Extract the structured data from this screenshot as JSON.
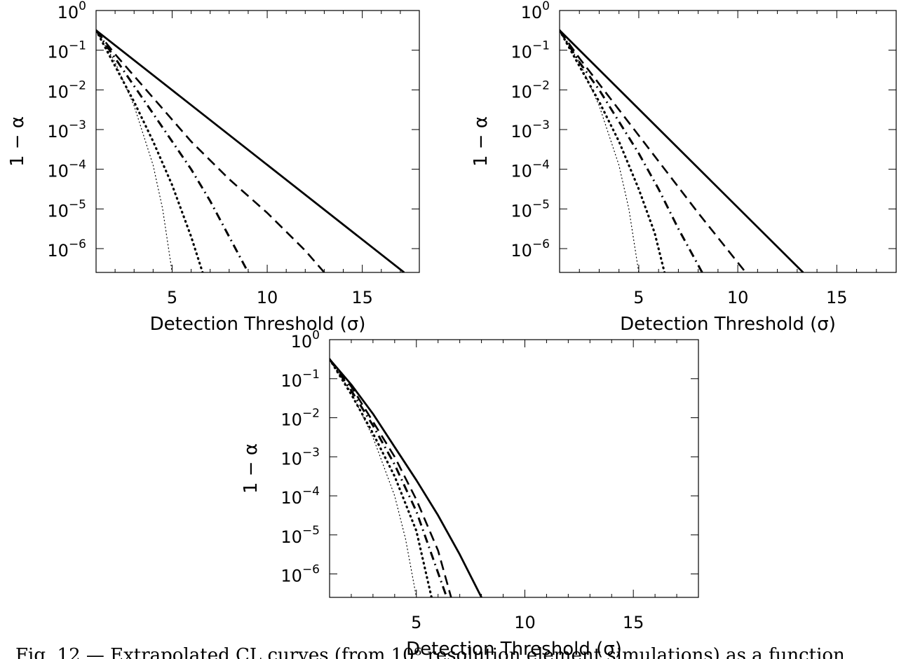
{
  "caption": "Fig. 12.— Extrapolated CL curves (from 10⁶ resolution element simulations) as a function",
  "chart_data": [
    {
      "type": "line",
      "title": "",
      "xlabel": "Detection Threshold (σ)",
      "ylabel": "1 − α",
      "xlim": [
        1,
        18
      ],
      "ylim_log10": [
        -6.6,
        0
      ],
      "yscale": "log",
      "xticks": [
        5,
        10,
        15
      ],
      "yticks": [
        {
          "exp": 0,
          "base": "10",
          "sup": "0"
        },
        {
          "exp": -1,
          "base": "10",
          "sup": "−1"
        },
        {
          "exp": -2,
          "base": "10",
          "sup": "−2"
        },
        {
          "exp": -3,
          "base": "10",
          "sup": "−3"
        },
        {
          "exp": -4,
          "base": "10",
          "sup": "−4"
        },
        {
          "exp": -5,
          "base": "10",
          "sup": "−5"
        },
        {
          "exp": -6,
          "base": "10",
          "sup": "−6"
        }
      ],
      "grid": false,
      "series": [
        {
          "style": "solid",
          "x": [
            1,
            17.2
          ],
          "log10_y": [
            -0.5,
            -6.6
          ]
        },
        {
          "style": "dashed",
          "x": [
            1,
            2,
            4,
            6,
            8,
            10,
            12,
            13.0
          ],
          "log10_y": [
            -0.5,
            -1.1,
            -2.2,
            -3.3,
            -4.25,
            -5.1,
            -6.05,
            -6.6
          ]
        },
        {
          "style": "dashdot",
          "x": [
            1,
            2,
            3,
            4,
            5,
            6,
            7,
            8,
            9.0
          ],
          "log10_y": [
            -0.5,
            -1.2,
            -1.9,
            -2.6,
            -3.3,
            -4.0,
            -4.8,
            -5.7,
            -6.6
          ]
        },
        {
          "style": "dotted",
          "x": [
            1,
            2,
            3,
            4,
            5,
            6,
            6.6
          ],
          "log10_y": [
            -0.5,
            -1.4,
            -2.3,
            -3.3,
            -4.4,
            -5.7,
            -6.6
          ]
        },
        {
          "style": "thin-dotted",
          "x": [
            1,
            2,
            3,
            4,
            4.5,
            5.0
          ],
          "log10_y": [
            -0.5,
            -1.3,
            -2.4,
            -3.9,
            -5.0,
            -6.6
          ]
        }
      ]
    },
    {
      "type": "line",
      "title": "",
      "xlabel": "Detection Threshold (σ)",
      "ylabel": "1 − α",
      "xlim": [
        1,
        18
      ],
      "ylim_log10": [
        -6.6,
        0
      ],
      "yscale": "log",
      "xticks": [
        5,
        10,
        15
      ],
      "yticks": [
        {
          "exp": 0,
          "base": "10",
          "sup": "0"
        },
        {
          "exp": -1,
          "base": "10",
          "sup": "−1"
        },
        {
          "exp": -2,
          "base": "10",
          "sup": "−2"
        },
        {
          "exp": -3,
          "base": "10",
          "sup": "−3"
        },
        {
          "exp": -4,
          "base": "10",
          "sup": "−4"
        },
        {
          "exp": -5,
          "base": "10",
          "sup": "−5"
        },
        {
          "exp": -6,
          "base": "10",
          "sup": "−6"
        }
      ],
      "grid": false,
      "series": [
        {
          "style": "solid",
          "x": [
            1,
            13.3
          ],
          "log10_y": [
            -0.5,
            -6.6
          ]
        },
        {
          "style": "dashed",
          "x": [
            1,
            2,
            4,
            6,
            8,
            10.4
          ],
          "log10_y": [
            -0.5,
            -1.2,
            -2.5,
            -3.8,
            -5.1,
            -6.6
          ]
        },
        {
          "style": "dashdot",
          "x": [
            1,
            2,
            3,
            4,
            5,
            6,
            7,
            8.2
          ],
          "log10_y": [
            -0.5,
            -1.3,
            -2.0,
            -2.8,
            -3.6,
            -4.5,
            -5.5,
            -6.6
          ]
        },
        {
          "style": "dotted",
          "x": [
            1,
            2,
            3,
            4,
            5,
            5.8,
            6.3
          ],
          "log10_y": [
            -0.5,
            -1.4,
            -2.3,
            -3.3,
            -4.5,
            -5.6,
            -6.6
          ]
        },
        {
          "style": "thin-dotted",
          "x": [
            1,
            2,
            3,
            4,
            4.5,
            5.0
          ],
          "log10_y": [
            -0.5,
            -1.3,
            -2.4,
            -3.9,
            -5.0,
            -6.6
          ]
        }
      ]
    },
    {
      "type": "line",
      "title": "",
      "xlabel": "Detection Threshold (σ)",
      "ylabel": "1 − α",
      "xlim": [
        1,
        18
      ],
      "ylim_log10": [
        -6.6,
        0
      ],
      "yscale": "log",
      "xticks": [
        5,
        10,
        15
      ],
      "yticks": [
        {
          "exp": 0,
          "base": "10",
          "sup": "0"
        },
        {
          "exp": -1,
          "base": "10",
          "sup": "−1"
        },
        {
          "exp": -2,
          "base": "10",
          "sup": "−2"
        },
        {
          "exp": -3,
          "base": "10",
          "sup": "−3"
        },
        {
          "exp": -4,
          "base": "10",
          "sup": "−4"
        },
        {
          "exp": -5,
          "base": "10",
          "sup": "−5"
        },
        {
          "exp": -6,
          "base": "10",
          "sup": "−6"
        }
      ],
      "grid": false,
      "series": [
        {
          "style": "solid",
          "x": [
            1,
            2,
            3,
            4,
            5,
            6,
            7,
            8.0
          ],
          "log10_y": [
            -0.5,
            -1.15,
            -1.9,
            -2.75,
            -3.6,
            -4.5,
            -5.5,
            -6.6
          ]
        },
        {
          "style": "dashed",
          "x": [
            1,
            2,
            3,
            4,
            5,
            6,
            6.6
          ],
          "log10_y": [
            -0.5,
            -1.2,
            -2.1,
            -3.0,
            -4.1,
            -5.4,
            -6.6
          ]
        },
        {
          "style": "dashdot",
          "x": [
            1,
            2,
            3,
            4,
            5,
            6.4
          ],
          "log10_y": [
            -0.5,
            -1.3,
            -2.2,
            -3.2,
            -4.4,
            -6.6
          ]
        },
        {
          "style": "dotted",
          "x": [
            1,
            2,
            3,
            4,
            5,
            5.7
          ],
          "log10_y": [
            -0.5,
            -1.4,
            -2.4,
            -3.5,
            -4.9,
            -6.6
          ]
        },
        {
          "style": "thin-dotted",
          "x": [
            1,
            2,
            3,
            4,
            4.5,
            5.0
          ],
          "log10_y": [
            -0.5,
            -1.35,
            -2.5,
            -4.0,
            -5.1,
            -6.6
          ]
        }
      ]
    }
  ]
}
